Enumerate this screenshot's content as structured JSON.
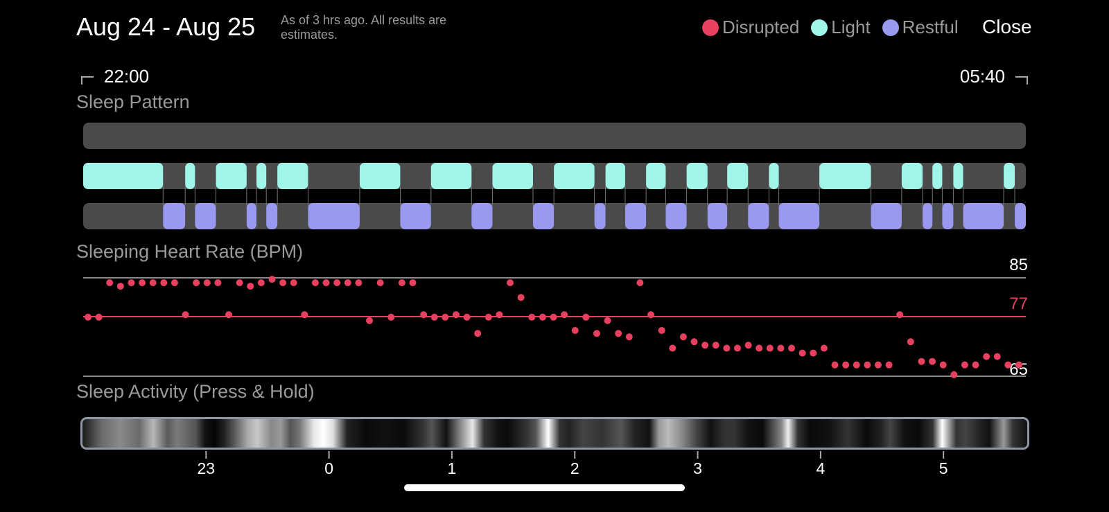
{
  "header": {
    "title": "Aug 24 - Aug 25",
    "subtitle": "As of 3 hrs ago. All results are estimates.",
    "close_label": "Close"
  },
  "legend": [
    {
      "label": "Disrupted",
      "color": "#e8405f"
    },
    {
      "label": "Light",
      "color": "#9ff5e8"
    },
    {
      "label": "Restful",
      "color": "#9899ef"
    }
  ],
  "time_range": {
    "start": "22:00",
    "end": "05:40"
  },
  "sleep_pattern": {
    "title": "Sleep Pattern",
    "colors": {
      "track": "#4a4a4a",
      "light": "#9ff5e8",
      "restful": "#9899ef",
      "connector": "#777777"
    },
    "light": [
      [
        0,
        0.65
      ],
      [
        0.83,
        0.91
      ],
      [
        1.08,
        1.33
      ],
      [
        1.41,
        1.49
      ],
      [
        1.58,
        1.83
      ],
      [
        2.25,
        2.58
      ],
      [
        2.83,
        3.16
      ],
      [
        3.33,
        3.66
      ],
      [
        3.83,
        4.16
      ],
      [
        4.25,
        4.41
      ],
      [
        4.58,
        4.74
      ],
      [
        4.91,
        5.08
      ],
      [
        5.24,
        5.41
      ],
      [
        5.58,
        5.66
      ],
      [
        5.99,
        6.41
      ],
      [
        6.66,
        6.83
      ],
      [
        6.91,
        6.99
      ],
      [
        7.08,
        7.16
      ],
      [
        7.49,
        7.58
      ]
    ],
    "restful": [
      [
        0.65,
        0.83
      ],
      [
        0.91,
        1.08
      ],
      [
        1.33,
        1.41
      ],
      [
        1.49,
        1.58
      ],
      [
        1.83,
        2.25
      ],
      [
        2.58,
        2.83
      ],
      [
        3.16,
        3.33
      ],
      [
        3.66,
        3.83
      ],
      [
        4.16,
        4.25
      ],
      [
        4.41,
        4.58
      ],
      [
        4.74,
        4.91
      ],
      [
        5.08,
        5.24
      ],
      [
        5.41,
        5.58
      ],
      [
        5.66,
        5.99
      ],
      [
        6.41,
        6.66
      ],
      [
        6.83,
        6.91
      ],
      [
        6.99,
        7.08
      ],
      [
        7.16,
        7.49
      ],
      [
        7.58,
        7.67
      ]
    ]
  },
  "heart_rate": {
    "title": "Sleeping Heart Rate (BPM)",
    "max_label": "85",
    "avg_label": "77",
    "min_label": "65",
    "colors": {
      "dot": "#e8405f",
      "avg_line": "#e8405f",
      "ref_line": "#8a8a8a"
    },
    "chart_data": {
      "type": "scatter",
      "xlim": [
        0,
        7.67
      ],
      "ylim": [
        65,
        85
      ],
      "y": [
        77,
        77,
        84,
        83.3,
        84,
        84,
        84,
        84,
        84,
        77.5,
        84,
        84,
        84,
        77.5,
        84,
        83.3,
        84,
        84.7,
        84,
        84,
        77.5,
        84,
        84,
        84,
        84,
        84,
        76.3,
        84,
        77,
        84,
        84,
        77.5,
        77,
        77,
        77.5,
        77,
        73.7,
        77,
        77.5,
        84,
        81,
        77,
        77,
        77,
        77.5,
        74.3,
        77,
        73.7,
        76.3,
        73.7,
        73,
        84,
        77.5,
        74.3,
        70.7,
        73,
        72,
        71.3,
        71.3,
        70.7,
        70.7,
        71.3,
        70.7,
        70.7,
        70.7,
        70.7,
        69.7,
        69.7,
        70.7,
        67.3,
        67.3,
        67.3,
        67.3,
        67.3,
        67.3,
        77.5,
        72,
        68,
        68,
        67.3,
        65.3,
        67.3,
        67.3,
        69,
        69,
        67.3,
        67.3
      ]
    }
  },
  "sleep_activity": {
    "title": "Sleep Activity (Press & Hold)",
    "tick_labels": [
      "23",
      "0",
      "1",
      "2",
      "3",
      "4",
      "5"
    ],
    "tick_hours": [
      1,
      2,
      3,
      4,
      5,
      6,
      7
    ]
  }
}
